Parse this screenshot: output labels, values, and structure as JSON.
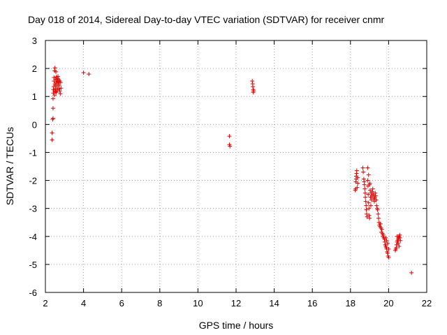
{
  "chart_data": {
    "type": "scatter",
    "title": "Day 018 of 2014, Sidereal Day-to-day VTEC variation (SDTVAR) for receiver cnmr",
    "xlabel": "GPS time / hours",
    "ylabel": "SDTVAR / TECUs",
    "xlim": [
      2,
      22
    ],
    "ylim": [
      -6,
      3
    ],
    "xticks": [
      2,
      4,
      6,
      8,
      10,
      12,
      14,
      16,
      18,
      20,
      22
    ],
    "yticks": [
      -6,
      -5,
      -4,
      -3,
      -2,
      -1,
      0,
      1,
      2,
      3
    ],
    "grid": true,
    "marker": "+",
    "colors": {
      "points": "#e00000",
      "grid": "#a0a0a0",
      "axis": "#000000"
    },
    "series": [
      {
        "name": "SDTVAR",
        "points": [
          [
            2.35,
            -0.55
          ],
          [
            2.35,
            -0.3
          ],
          [
            2.38,
            0.18
          ],
          [
            2.4,
            0.22
          ],
          [
            2.4,
            0.58
          ],
          [
            2.4,
            0.92
          ],
          [
            2.42,
            1.12
          ],
          [
            2.42,
            1.25
          ],
          [
            2.44,
            1.35
          ],
          [
            2.45,
            1.55
          ],
          [
            2.45,
            1.68
          ],
          [
            2.47,
            1.2
          ],
          [
            2.48,
            1.05
          ],
          [
            2.48,
            1.92
          ],
          [
            2.5,
            2.02
          ],
          [
            2.5,
            1.45
          ],
          [
            2.52,
            1.62
          ],
          [
            2.53,
            1.28
          ],
          [
            2.55,
            1.88
          ],
          [
            2.55,
            1.18
          ],
          [
            2.57,
            1.5
          ],
          [
            2.58,
            1.7
          ],
          [
            2.6,
            1.6
          ],
          [
            2.6,
            1.35
          ],
          [
            2.62,
            1.55
          ],
          [
            2.63,
            1.25
          ],
          [
            2.65,
            1.65
          ],
          [
            2.66,
            1.45
          ],
          [
            2.68,
            1.52
          ],
          [
            2.7,
            1.6
          ],
          [
            2.72,
            1.4
          ],
          [
            2.75,
            1.55
          ],
          [
            2.75,
            1.2
          ],
          [
            2.78,
            1.1
          ],
          [
            2.8,
            1.5
          ],
          [
            2.82,
            1.3
          ],
          [
            2.58,
            1.15
          ],
          [
            2.66,
            1.72
          ],
          [
            2.7,
            1.28
          ],
          [
            2.52,
            1.4
          ],
          [
            4.0,
            1.85
          ],
          [
            4.28,
            1.8
          ],
          [
            11.65,
            -0.42
          ],
          [
            11.65,
            -0.72
          ],
          [
            11.68,
            -0.78
          ],
          [
            12.85,
            1.55
          ],
          [
            12.87,
            1.45
          ],
          [
            12.88,
            1.35
          ],
          [
            12.9,
            1.25
          ],
          [
            12.9,
            1.15
          ],
          [
            12.92,
            1.2
          ],
          [
            18.25,
            -2.35
          ],
          [
            18.27,
            -2.3
          ],
          [
            18.28,
            -2.05
          ],
          [
            18.3,
            -1.95
          ],
          [
            18.3,
            -1.85
          ],
          [
            18.32,
            -1.75
          ],
          [
            18.33,
            -1.65
          ],
          [
            18.35,
            -2.25
          ],
          [
            18.37,
            -1.9
          ],
          [
            18.38,
            -2.1
          ],
          [
            18.65,
            -1.55
          ],
          [
            18.67,
            -1.7
          ],
          [
            18.7,
            -1.95
          ],
          [
            18.72,
            -2.05
          ],
          [
            18.73,
            -2.15
          ],
          [
            18.75,
            -2.3
          ],
          [
            18.77,
            -2.45
          ],
          [
            18.78,
            -2.6
          ],
          [
            18.8,
            -2.75
          ],
          [
            18.82,
            -2.9
          ],
          [
            18.83,
            -3.05
          ],
          [
            18.85,
            -3.2
          ],
          [
            18.87,
            -3.3
          ],
          [
            18.9,
            -2.0
          ],
          [
            18.92,
            -2.2
          ],
          [
            18.93,
            -2.5
          ],
          [
            18.95,
            -2.8
          ],
          [
            18.97,
            -3.0
          ],
          [
            18.98,
            -3.25
          ],
          [
            19.0,
            -3.35
          ],
          [
            19.02,
            -2.1
          ],
          [
            19.03,
            -2.35
          ],
          [
            19.05,
            -2.6
          ],
          [
            19.07,
            -2.9
          ],
          [
            18.9,
            -1.55
          ],
          [
            18.95,
            -1.8
          ],
          [
            19.0,
            -2.15
          ],
          [
            19.08,
            -2.45
          ],
          [
            19.1,
            -2.7
          ],
          [
            19.12,
            -2.55
          ],
          [
            19.15,
            -2.4
          ],
          [
            19.17,
            -2.3
          ],
          [
            19.2,
            -2.5
          ],
          [
            19.22,
            -2.65
          ],
          [
            19.25,
            -2.75
          ],
          [
            19.27,
            -2.6
          ],
          [
            19.3,
            -2.45
          ],
          [
            19.32,
            -2.55
          ],
          [
            19.35,
            -2.7
          ],
          [
            19.37,
            -2.9
          ],
          [
            19.4,
            -3.0
          ],
          [
            19.42,
            -3.05
          ],
          [
            19.45,
            -3.2
          ],
          [
            19.47,
            -3.35
          ],
          [
            19.5,
            -3.5
          ],
          [
            19.52,
            -3.6
          ],
          [
            19.55,
            -3.65
          ],
          [
            19.57,
            -3.55
          ],
          [
            19.6,
            -3.7
          ],
          [
            19.62,
            -3.85
          ],
          [
            19.65,
            -3.75
          ],
          [
            19.68,
            -3.9
          ],
          [
            19.7,
            -4.0
          ],
          [
            19.72,
            -3.95
          ],
          [
            19.75,
            -4.05
          ],
          [
            19.78,
            -4.1
          ],
          [
            19.8,
            -4.2
          ],
          [
            19.82,
            -4.3
          ],
          [
            19.85,
            -4.35
          ],
          [
            19.88,
            -4.4
          ],
          [
            19.9,
            -4.45
          ],
          [
            19.92,
            -4.55
          ],
          [
            19.95,
            -4.6
          ],
          [
            19.97,
            -4.7
          ],
          [
            20.0,
            -4.75
          ],
          [
            19.85,
            -4.05
          ],
          [
            19.9,
            -4.15
          ],
          [
            19.95,
            -4.25
          ],
          [
            20.0,
            -4.45
          ],
          [
            20.35,
            -4.5
          ],
          [
            20.38,
            -4.45
          ],
          [
            20.4,
            -4.4
          ],
          [
            20.42,
            -4.3
          ],
          [
            20.45,
            -4.2
          ],
          [
            20.47,
            -4.15
          ],
          [
            20.5,
            -4.1
          ],
          [
            20.52,
            -4.05
          ],
          [
            20.55,
            -4.0
          ],
          [
            20.58,
            -3.95
          ],
          [
            20.6,
            -4.05
          ],
          [
            20.62,
            -4.15
          ],
          [
            20.45,
            -4.0
          ],
          [
            20.5,
            -4.25
          ],
          [
            20.55,
            -4.35
          ],
          [
            21.2,
            -5.3
          ]
        ]
      }
    ]
  }
}
